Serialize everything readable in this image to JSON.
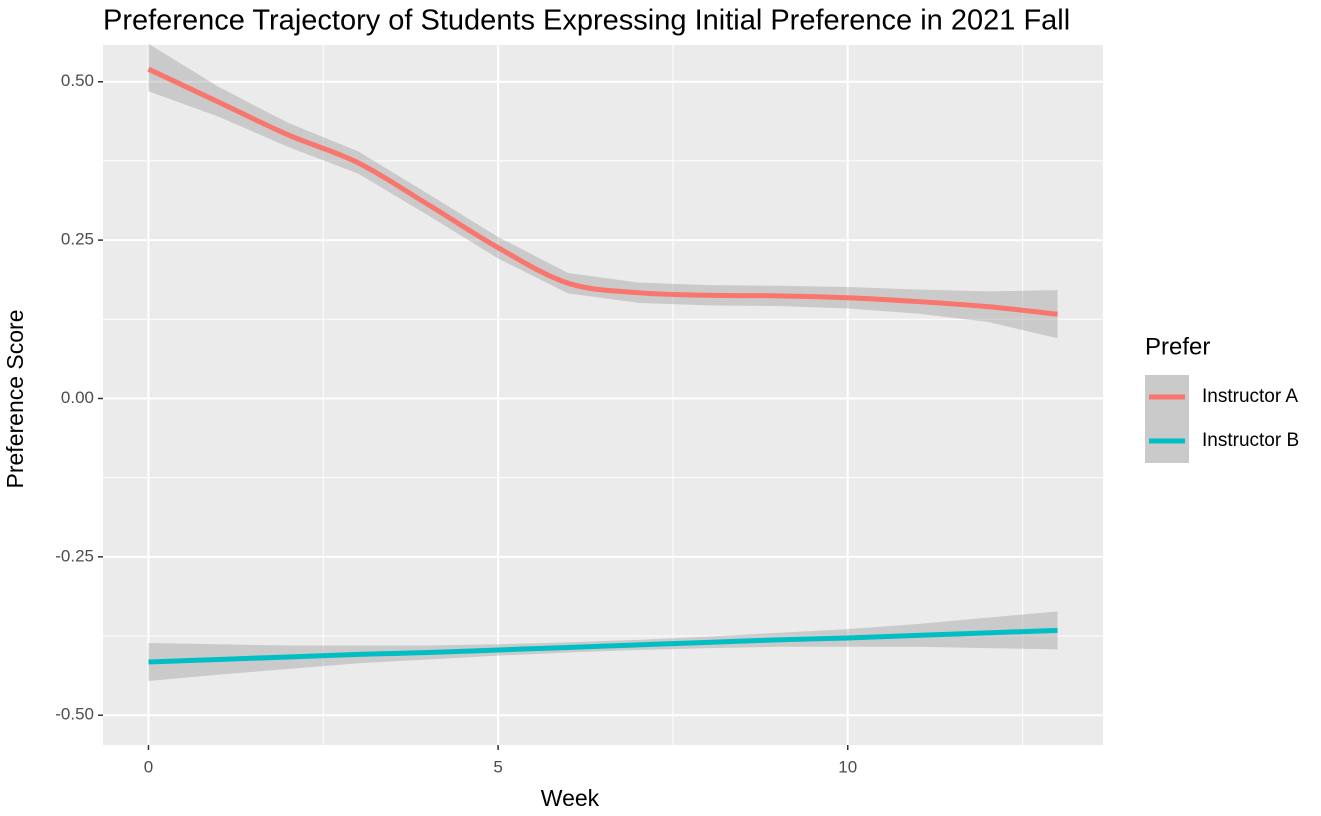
{
  "chart_data": {
    "type": "smooth",
    "title": "Preference Trajectory of Students Expressing Initial Preference in 2021 Fall",
    "x_label": "Week",
    "y_label": "Preference Score",
    "legend_title": "Prefer",
    "x": [
      0,
      1,
      2,
      3,
      4,
      5,
      6,
      7,
      8,
      9,
      10,
      11,
      12,
      13
    ],
    "series": [
      {
        "name": "Instructor A",
        "color": "#f8766d",
        "values": [
          0.52,
          0.468,
          0.416,
          0.372,
          0.306,
          0.238,
          0.182,
          0.167,
          0.163,
          0.162,
          0.159,
          0.153,
          0.145,
          0.133
        ],
        "lower": [
          0.485,
          0.445,
          0.397,
          0.355,
          0.289,
          0.221,
          0.166,
          0.151,
          0.147,
          0.146,
          0.142,
          0.134,
          0.121,
          0.095
        ],
        "upper": [
          0.56,
          0.492,
          0.435,
          0.39,
          0.323,
          0.255,
          0.198,
          0.183,
          0.179,
          0.178,
          0.176,
          0.172,
          0.169,
          0.171
        ]
      },
      {
        "name": "Instructor B",
        "color": "#00bfc4",
        "values": [
          -0.416,
          -0.412,
          -0.408,
          -0.404,
          -0.401,
          -0.397,
          -0.393,
          -0.389,
          -0.385,
          -0.381,
          -0.378,
          -0.374,
          -0.37,
          -0.366
        ],
        "lower": [
          -0.446,
          -0.436,
          -0.427,
          -0.418,
          -0.412,
          -0.406,
          -0.401,
          -0.397,
          -0.394,
          -0.392,
          -0.392,
          -0.392,
          -0.394,
          -0.396
        ],
        "upper": [
          -0.386,
          -0.388,
          -0.39,
          -0.39,
          -0.39,
          -0.388,
          -0.385,
          -0.381,
          -0.376,
          -0.37,
          -0.364,
          -0.356,
          -0.346,
          -0.336
        ]
      }
    ],
    "ribbon_color": "#999999",
    "xlim": [
      -0.65,
      13.65
    ],
    "ylim": [
      -0.547,
      0.558
    ],
    "xticks": [
      0,
      5,
      10
    ],
    "yticks": [
      {
        "value": -0.5,
        "label": "-0.50"
      },
      {
        "value": -0.25,
        "label": "-0.25"
      },
      {
        "value": 0,
        "label": "0.00"
      },
      {
        "value": 0.25,
        "label": "0.25"
      },
      {
        "value": 0.5,
        "label": "0.50"
      }
    ],
    "grid": true,
    "legend": "right"
  }
}
